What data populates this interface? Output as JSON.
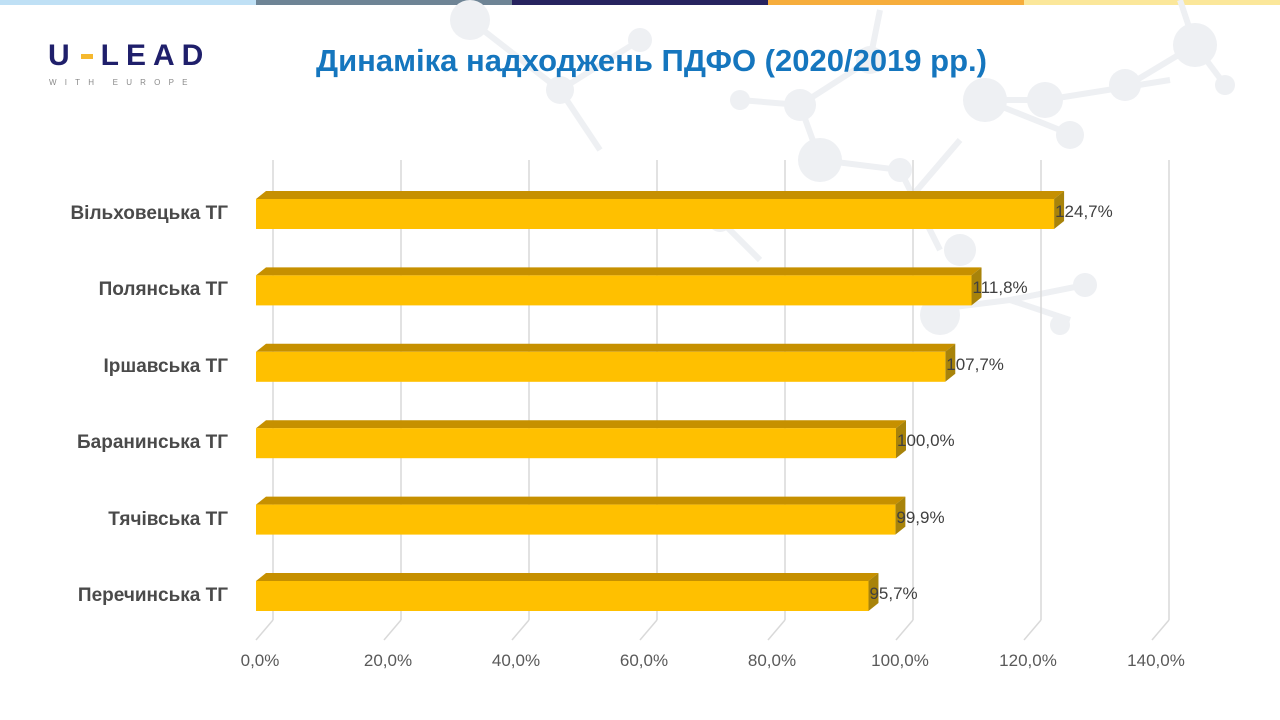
{
  "header": {
    "logo_main_left": "U",
    "logo_main_right": "LEAD",
    "logo_sub": "WITH EUROPE",
    "title": "Динаміка надходжень ПДФО (2020/2019 рр.)"
  },
  "topbar_colors": [
    "#bfe0f5",
    "#6e8495",
    "#27235f",
    "#f6ad3c",
    "#fbe79a"
  ],
  "colors": {
    "bar_front": "#ffc000",
    "bar_top": "#c69000",
    "bar_side": "#a8830a",
    "title": "#1576be",
    "grid": "#d9d9d9"
  },
  "chart_data": {
    "type": "bar",
    "orientation": "horizontal",
    "style": "3d-clustered",
    "title": "Динаміка надходжень ПДФО (2020/2019 рр.)",
    "xlabel": "",
    "ylabel": "",
    "categories": [
      "Вільховецька ТГ",
      "Полянська ТГ",
      "Іршавська ТГ",
      "Баранинська ТГ",
      "Тячівська ТГ",
      "Перечинська ТГ"
    ],
    "values": [
      124.7,
      111.8,
      107.7,
      100.0,
      99.9,
      95.7
    ],
    "value_labels": [
      "124,7%",
      "111,8%",
      "107,7%",
      "100,0%",
      "99,9%",
      "95,7%"
    ],
    "xlim": [
      0,
      140
    ],
    "x_ticks": [
      0,
      20,
      40,
      60,
      80,
      100,
      120,
      140
    ],
    "x_tick_labels": [
      "0,0%",
      "20,0%",
      "40,0%",
      "60,0%",
      "80,0%",
      "100,0%",
      "120,0%",
      "140,0%"
    ],
    "grid": true,
    "legend": "none"
  }
}
